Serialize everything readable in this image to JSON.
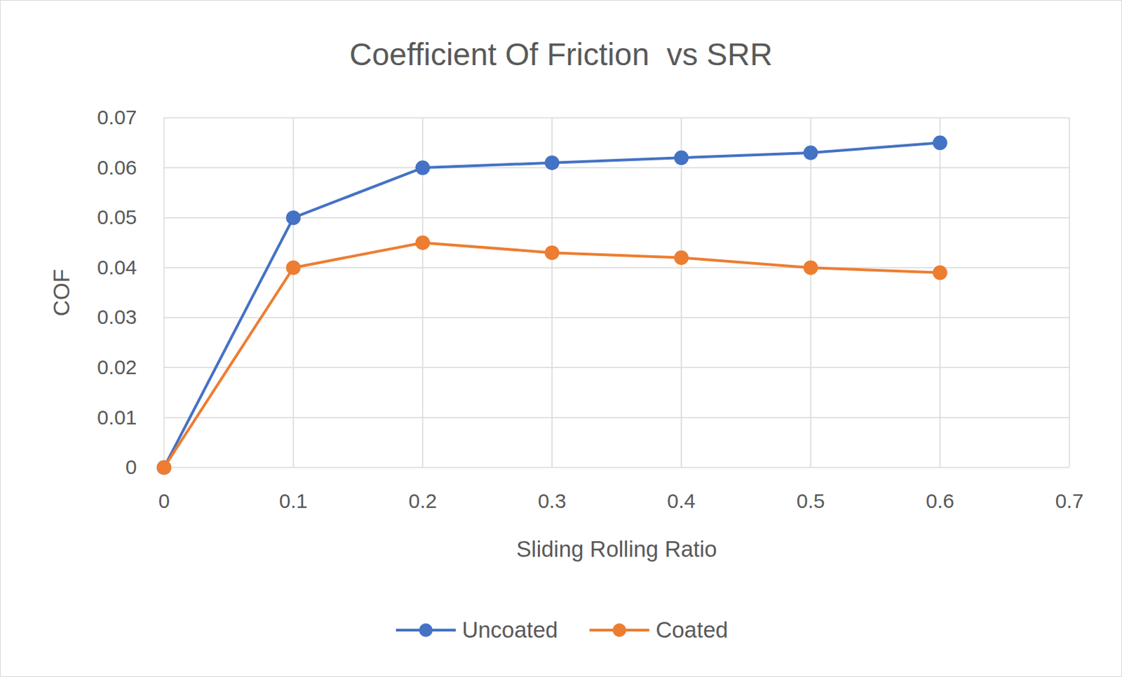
{
  "chart_data": {
    "type": "line",
    "title": "Coefficient Of Friction  vs SRR",
    "x_label": "Sliding Rolling Ratio",
    "y_label": "COF",
    "x": [
      0,
      0.1,
      0.2,
      0.3,
      0.4,
      0.5,
      0.6
    ],
    "series": [
      {
        "name": "Uncoated",
        "color": "#4472c4",
        "values": [
          0,
          0.05,
          0.06,
          0.061,
          0.062,
          0.063,
          0.065
        ]
      },
      {
        "name": "Coated",
        "color": "#ed7d31",
        "values": [
          0,
          0.04,
          0.045,
          0.043,
          0.042,
          0.04,
          0.039
        ]
      }
    ],
    "xlim": [
      0,
      0.7
    ],
    "xticks": [
      0,
      0.1,
      0.2,
      0.3,
      0.4,
      0.5,
      0.6,
      0.7
    ],
    "ylim": [
      0,
      0.07
    ],
    "yticks": [
      0,
      0.01,
      0.02,
      0.03,
      0.04,
      0.05,
      0.06,
      0.07
    ],
    "grid": true,
    "legend": "bottom",
    "marker": "circle"
  }
}
